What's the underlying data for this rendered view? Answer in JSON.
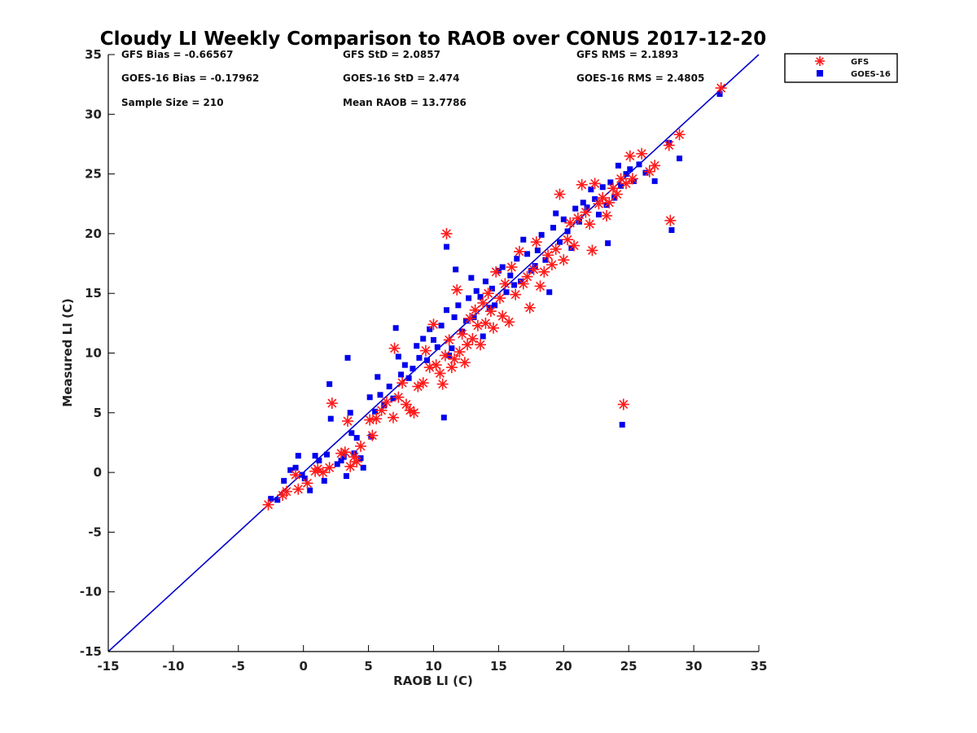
{
  "chart_data": {
    "type": "scatter",
    "title": "Cloudy LI Weekly Comparison to RAOB over CONUS 2017-12-20",
    "xlabel": "RAOB LI (C)",
    "ylabel": "Measured LI (C)",
    "xlim": [
      -15,
      35
    ],
    "ylim": [
      -15,
      35
    ],
    "xticks": [
      "-15",
      "-10",
      "-5",
      "0",
      "5",
      "10",
      "15",
      "20",
      "25",
      "30",
      "35"
    ],
    "yticks": [
      "-15",
      "-10",
      "-5",
      "0",
      "5",
      "10",
      "15",
      "20",
      "25",
      "30",
      "35"
    ],
    "grid": false,
    "legend_position": "top-right, outside plot",
    "reference_line": {
      "type": "1:1",
      "from": [
        -15,
        -15
      ],
      "to": [
        35,
        35
      ],
      "color": "#0000cc"
    },
    "stats": [
      [
        "GFS Bias = -0.66567",
        "GFS StD = 2.0857",
        "GFS RMS = 2.1893"
      ],
      [
        "GOES-16 Bias = -0.17962",
        "GOES-16 StD = 2.474",
        "GOES-16 RMS = 2.4805"
      ],
      [
        "Sample Size = 210",
        "Mean RAOB = 13.7786",
        ""
      ]
    ],
    "series": [
      {
        "name": "GFS",
        "marker": "asterisk",
        "color": "#ff1a1a",
        "points": [
          [
            -2.7,
            -2.7
          ],
          [
            -1.6,
            -1.9
          ],
          [
            -1.3,
            -1.6
          ],
          [
            -0.6,
            -0.2
          ],
          [
            -0.4,
            -1.4
          ],
          [
            0.3,
            -0.9
          ],
          [
            0.9,
            0.1
          ],
          [
            1.1,
            0.3
          ],
          [
            1.5,
            0.0
          ],
          [
            2.0,
            0.4
          ],
          [
            2.2,
            5.8
          ],
          [
            2.9,
            1.6
          ],
          [
            3.2,
            1.7
          ],
          [
            3.4,
            4.3
          ],
          [
            3.6,
            0.5
          ],
          [
            3.9,
            1.3
          ],
          [
            4.1,
            0.9
          ],
          [
            4.4,
            2.2
          ],
          [
            5.1,
            4.4
          ],
          [
            5.3,
            3.1
          ],
          [
            5.6,
            4.5
          ],
          [
            6.0,
            5.2
          ],
          [
            6.4,
            5.9
          ],
          [
            6.9,
            4.6
          ],
          [
            7.0,
            10.4
          ],
          [
            7.3,
            6.3
          ],
          [
            7.6,
            7.5
          ],
          [
            7.9,
            5.7
          ],
          [
            8.2,
            5.2
          ],
          [
            8.5,
            5.0
          ],
          [
            8.8,
            7.2
          ],
          [
            9.2,
            7.5
          ],
          [
            9.4,
            10.2
          ],
          [
            9.7,
            8.8
          ],
          [
            10.0,
            12.4
          ],
          [
            10.2,
            9.0
          ],
          [
            10.5,
            8.3
          ],
          [
            10.7,
            7.4
          ],
          [
            10.9,
            9.8
          ],
          [
            11.0,
            20.0
          ],
          [
            11.2,
            11.1
          ],
          [
            11.4,
            8.8
          ],
          [
            11.6,
            9.5
          ],
          [
            11.8,
            15.3
          ],
          [
            12.0,
            10.1
          ],
          [
            12.2,
            11.6
          ],
          [
            12.4,
            9.2
          ],
          [
            12.6,
            10.7
          ],
          [
            12.8,
            12.9
          ],
          [
            13.0,
            11.2
          ],
          [
            13.2,
            13.6
          ],
          [
            13.4,
            12.3
          ],
          [
            13.6,
            10.7
          ],
          [
            13.8,
            14.2
          ],
          [
            14.0,
            12.5
          ],
          [
            14.2,
            15.0
          ],
          [
            14.4,
            13.5
          ],
          [
            14.6,
            12.1
          ],
          [
            14.8,
            16.8
          ],
          [
            15.1,
            14.6
          ],
          [
            15.3,
            13.1
          ],
          [
            15.5,
            15.8
          ],
          [
            15.8,
            12.6
          ],
          [
            16.0,
            17.2
          ],
          [
            16.3,
            14.9
          ],
          [
            16.6,
            18.5
          ],
          [
            16.9,
            15.8
          ],
          [
            17.2,
            16.4
          ],
          [
            17.4,
            13.8
          ],
          [
            17.7,
            17.0
          ],
          [
            17.9,
            19.3
          ],
          [
            18.2,
            15.6
          ],
          [
            18.5,
            16.8
          ],
          [
            18.8,
            18.2
          ],
          [
            19.1,
            17.4
          ],
          [
            19.4,
            18.7
          ],
          [
            19.7,
            23.3
          ],
          [
            20.0,
            17.8
          ],
          [
            20.3,
            19.5
          ],
          [
            20.5,
            20.9
          ],
          [
            20.8,
            19.0
          ],
          [
            21.1,
            21.3
          ],
          [
            21.4,
            24.1
          ],
          [
            21.7,
            21.8
          ],
          [
            22.0,
            20.8
          ],
          [
            22.2,
            18.6
          ],
          [
            22.4,
            24.2
          ],
          [
            22.7,
            22.5
          ],
          [
            23.0,
            23.0
          ],
          [
            23.3,
            21.5
          ],
          [
            23.5,
            22.6
          ],
          [
            23.8,
            23.8
          ],
          [
            24.1,
            23.3
          ],
          [
            24.4,
            24.6
          ],
          [
            24.6,
            5.7
          ],
          [
            24.8,
            24.2
          ],
          [
            25.1,
            26.5
          ],
          [
            25.3,
            24.6
          ],
          [
            26.0,
            26.7
          ],
          [
            26.6,
            25.2
          ],
          [
            27.0,
            25.7
          ],
          [
            28.1,
            27.4
          ],
          [
            28.2,
            21.1
          ],
          [
            28.9,
            28.3
          ],
          [
            32.1,
            32.2
          ]
        ]
      },
      {
        "name": "GOES-16",
        "marker": "square",
        "color": "#0000ee",
        "points": [
          [
            -2.5,
            -2.2
          ],
          [
            -2.0,
            -2.3
          ],
          [
            -1.5,
            -0.7
          ],
          [
            -1.0,
            0.2
          ],
          [
            -0.6,
            0.4
          ],
          [
            -0.4,
            1.4
          ],
          [
            -0.1,
            -0.2
          ],
          [
            0.1,
            -0.5
          ],
          [
            0.5,
            -1.5
          ],
          [
            0.9,
            1.4
          ],
          [
            1.2,
            1.0
          ],
          [
            1.6,
            -0.7
          ],
          [
            1.8,
            1.5
          ],
          [
            2.0,
            7.4
          ],
          [
            2.1,
            4.5
          ],
          [
            2.6,
            0.7
          ],
          [
            2.9,
            1.0
          ],
          [
            3.1,
            1.3
          ],
          [
            3.3,
            -0.3
          ],
          [
            3.4,
            9.6
          ],
          [
            3.6,
            5.0
          ],
          [
            3.7,
            3.3
          ],
          [
            3.9,
            1.6
          ],
          [
            4.1,
            2.9
          ],
          [
            4.4,
            1.2
          ],
          [
            4.6,
            0.4
          ],
          [
            5.1,
            6.3
          ],
          [
            5.2,
            3.0
          ],
          [
            5.5,
            5.1
          ],
          [
            5.7,
            8.0
          ],
          [
            5.9,
            6.5
          ],
          [
            6.2,
            5.6
          ],
          [
            6.6,
            7.2
          ],
          [
            6.9,
            6.2
          ],
          [
            7.1,
            12.1
          ],
          [
            7.3,
            9.7
          ],
          [
            7.5,
            8.2
          ],
          [
            7.8,
            9.0
          ],
          [
            8.1,
            7.9
          ],
          [
            8.4,
            8.7
          ],
          [
            8.7,
            10.6
          ],
          [
            8.9,
            9.6
          ],
          [
            9.2,
            11.2
          ],
          [
            9.5,
            9.4
          ],
          [
            9.7,
            12.0
          ],
          [
            10.0,
            11.1
          ],
          [
            10.3,
            10.5
          ],
          [
            10.6,
            12.3
          ],
          [
            10.8,
            4.6
          ],
          [
            11.0,
            13.6
          ],
          [
            11.0,
            18.9
          ],
          [
            11.2,
            9.8
          ],
          [
            11.4,
            10.4
          ],
          [
            11.6,
            13.0
          ],
          [
            11.7,
            17.0
          ],
          [
            11.9,
            14.0
          ],
          [
            12.2,
            11.8
          ],
          [
            12.5,
            12.7
          ],
          [
            12.7,
            14.6
          ],
          [
            12.9,
            16.3
          ],
          [
            13.1,
            13.0
          ],
          [
            13.3,
            15.2
          ],
          [
            13.6,
            14.7
          ],
          [
            13.8,
            11.4
          ],
          [
            14.0,
            16.0
          ],
          [
            14.3,
            13.8
          ],
          [
            14.5,
            15.4
          ],
          [
            14.7,
            14.0
          ],
          [
            15.0,
            16.9
          ],
          [
            15.3,
            17.2
          ],
          [
            15.6,
            15.1
          ],
          [
            15.9,
            16.5
          ],
          [
            16.2,
            15.7
          ],
          [
            16.4,
            17.9
          ],
          [
            16.7,
            16.0
          ],
          [
            16.9,
            19.5
          ],
          [
            17.2,
            18.3
          ],
          [
            17.5,
            16.9
          ],
          [
            17.8,
            17.3
          ],
          [
            18.0,
            18.6
          ],
          [
            18.3,
            19.9
          ],
          [
            18.6,
            17.8
          ],
          [
            18.9,
            15.1
          ],
          [
            19.2,
            20.5
          ],
          [
            19.4,
            21.7
          ],
          [
            19.7,
            19.3
          ],
          [
            20.0,
            21.2
          ],
          [
            20.3,
            20.2
          ],
          [
            20.6,
            18.8
          ],
          [
            20.9,
            22.1
          ],
          [
            21.2,
            21.0
          ],
          [
            21.5,
            22.6
          ],
          [
            21.8,
            22.2
          ],
          [
            22.1,
            23.7
          ],
          [
            22.4,
            22.9
          ],
          [
            22.7,
            21.6
          ],
          [
            23.0,
            23.9
          ],
          [
            23.3,
            22.4
          ],
          [
            23.4,
            19.2
          ],
          [
            23.6,
            24.3
          ],
          [
            23.9,
            23.0
          ],
          [
            24.2,
            25.7
          ],
          [
            24.4,
            24.0
          ],
          [
            24.5,
            4.0
          ],
          [
            24.8,
            25.0
          ],
          [
            25.1,
            25.4
          ],
          [
            25.4,
            24.4
          ],
          [
            25.8,
            25.8
          ],
          [
            26.3,
            25.1
          ],
          [
            27.0,
            24.4
          ],
          [
            28.1,
            27.6
          ],
          [
            28.3,
            20.3
          ],
          [
            28.9,
            26.3
          ],
          [
            32.0,
            31.7
          ]
        ]
      }
    ]
  }
}
